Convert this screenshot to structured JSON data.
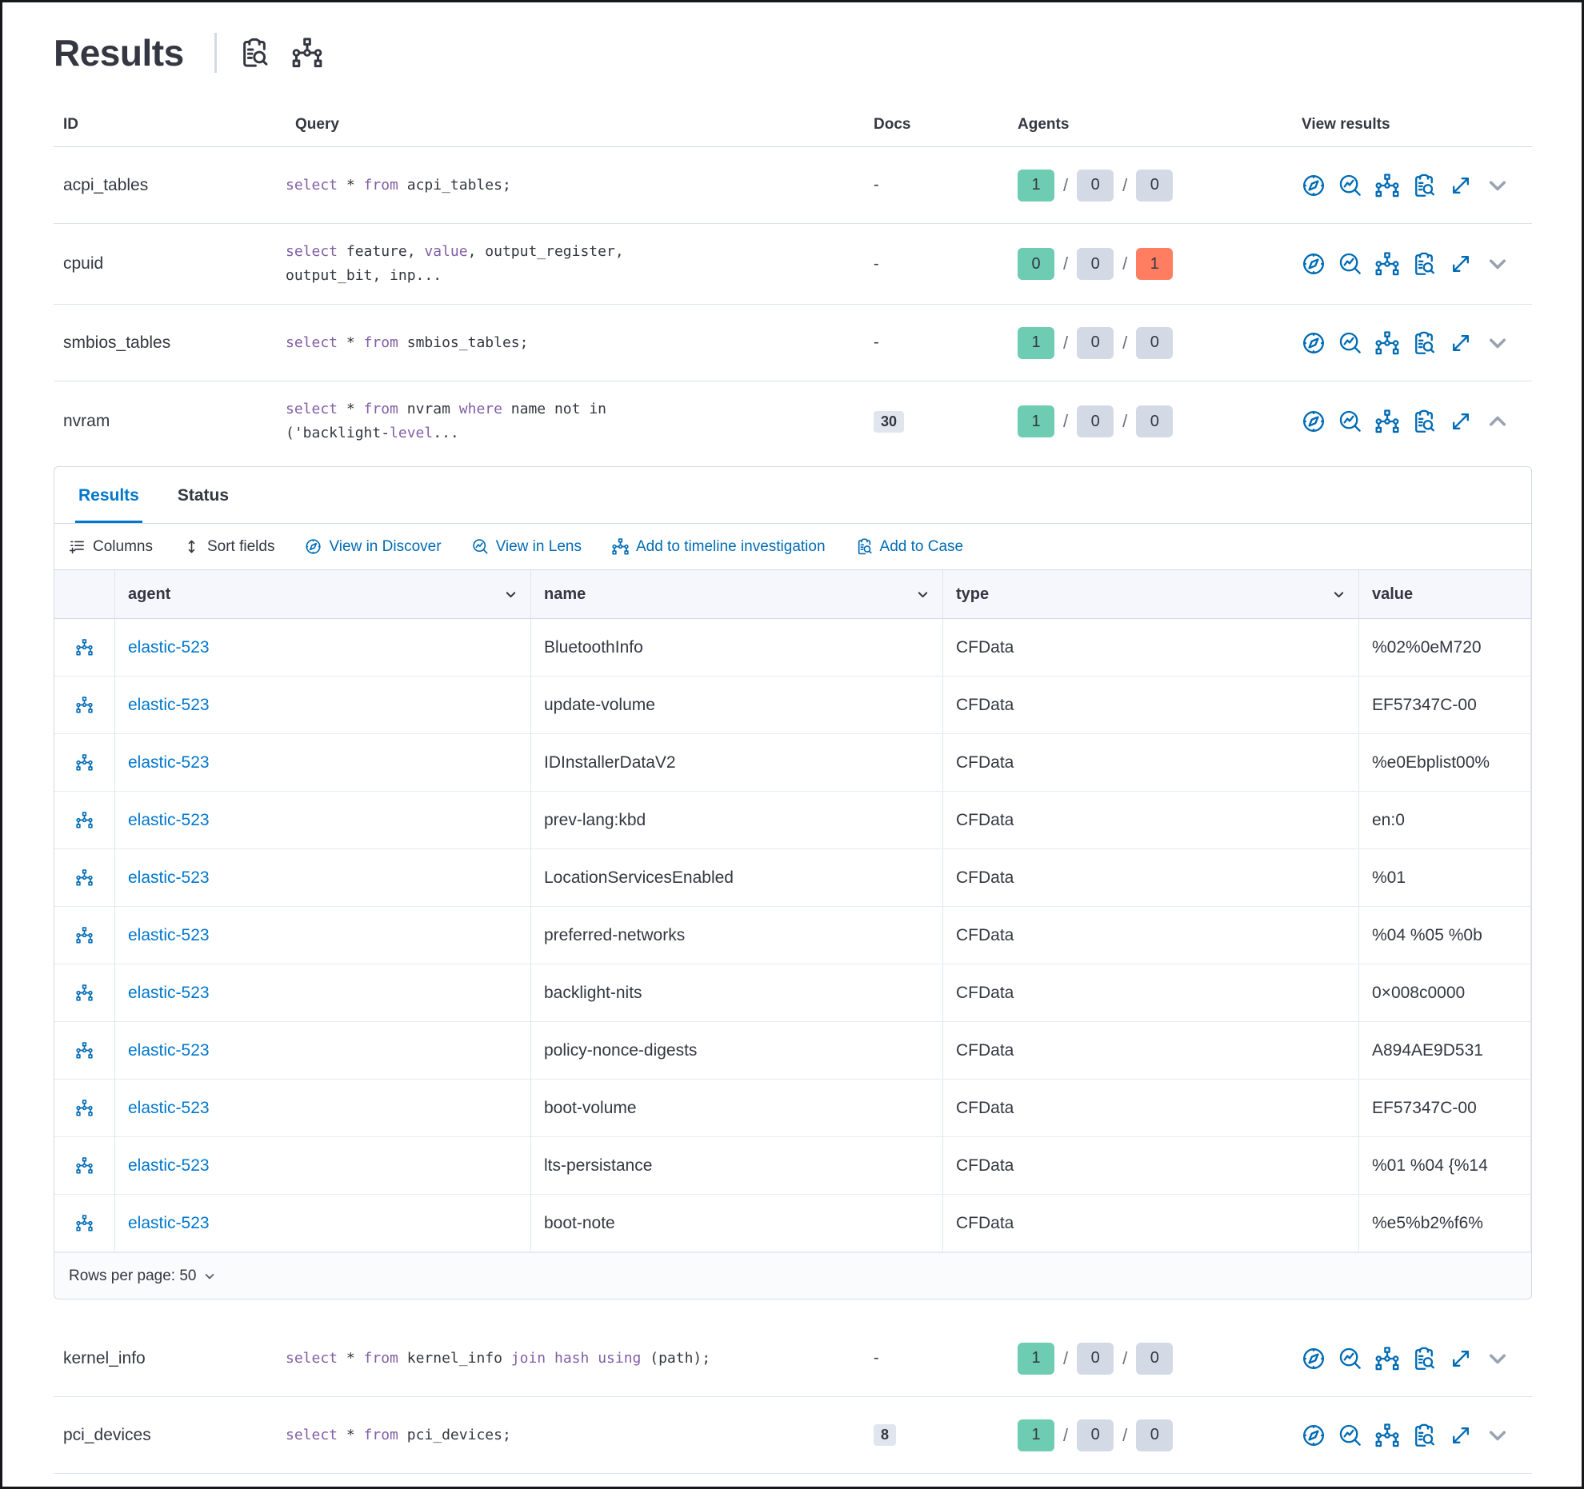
{
  "page": {
    "title": "Results"
  },
  "table": {
    "headers": {
      "id": "ID",
      "query": "Query",
      "docs": "Docs",
      "agents": "Agents",
      "view": "View results"
    }
  },
  "queries": [
    {
      "id": "acpi_tables",
      "query": "select * from acpi_tables;",
      "docs": "-",
      "agents": [
        "1",
        "0",
        "0"
      ]
    },
    {
      "id": "cpuid",
      "query": "select feature, value, output_register,\noutput_bit, inp...",
      "docs": "-",
      "agents": [
        "0",
        "0",
        "1"
      ]
    },
    {
      "id": "smbios_tables",
      "query": "select * from smbios_tables;",
      "docs": "-",
      "agents": [
        "1",
        "0",
        "0"
      ]
    },
    {
      "id": "nvram",
      "query": "select * from nvram where name not in\n('backlight-level...",
      "docs": "30",
      "agents": [
        "1",
        "0",
        "0"
      ]
    },
    {
      "id": "kernel_info",
      "query": "select * from kernel_info join hash using (path);",
      "docs": "-",
      "agents": [
        "1",
        "0",
        "0"
      ]
    },
    {
      "id": "pci_devices",
      "query": "select * from pci_devices;",
      "docs": "8",
      "agents": [
        "1",
        "0",
        "0"
      ]
    }
  ],
  "panel": {
    "tabs": {
      "results": "Results",
      "status": "Status"
    },
    "toolbar": {
      "columns": "Columns",
      "sort": "Sort fields",
      "discover": "View in Discover",
      "lens": "View in Lens",
      "timeline": "Add to timeline investigation",
      "case": "Add to Case"
    },
    "grid": {
      "headers": {
        "agent": "agent",
        "name": "name",
        "type": "type",
        "value": "value"
      },
      "rows": [
        {
          "agent": "elastic-523",
          "name": "BluetoothInfo",
          "type": "CFData",
          "value": "%02%0eM720"
        },
        {
          "agent": "elastic-523",
          "name": "update-volume",
          "type": "CFData",
          "value": "EF57347C-00"
        },
        {
          "agent": "elastic-523",
          "name": "IDInstallerDataV2",
          "type": "CFData",
          "value": "%e0Ebplist00%"
        },
        {
          "agent": "elastic-523",
          "name": "prev-lang:kbd",
          "type": "CFData",
          "value": "en:0"
        },
        {
          "agent": "elastic-523",
          "name": "LocationServicesEnabled",
          "type": "CFData",
          "value": "%01"
        },
        {
          "agent": "elastic-523",
          "name": "preferred-networks",
          "type": "CFData",
          "value": "%04 %05 %0b"
        },
        {
          "agent": "elastic-523",
          "name": "backlight-nits",
          "type": "CFData",
          "value": "0×008c0000"
        },
        {
          "agent": "elastic-523",
          "name": "policy-nonce-digests",
          "type": "CFData",
          "value": "A894AE9D531"
        },
        {
          "agent": "elastic-523",
          "name": "boot-volume",
          "type": "CFData",
          "value": "EF57347C-00"
        },
        {
          "agent": "elastic-523",
          "name": "lts-persistance",
          "type": "CFData",
          "value": "%01 %04 {%14"
        },
        {
          "agent": "elastic-523",
          "name": "boot-note",
          "type": "CFData",
          "value": "%e5%b2%f6%"
        }
      ]
    },
    "pagination": {
      "rows_per_page": "Rows per page: 50"
    }
  },
  "icons": {
    "clipboard-search-icon": "clipboard with magnifier (inspect / add to case)",
    "tree-diagram-icon": "node tree (timeline investigation)",
    "compass-icon": "Discover compass",
    "lens-icon": "magnifier with chart (Lens)",
    "expand-icon": "diagonal expand arrows",
    "chevron-icon": "expand/collapse chevron",
    "columns-icon": "list with plus",
    "sort-icon": "vertical double arrow"
  },
  "colors": {
    "text": "#343741",
    "link": "#0077CC",
    "action_icon": "#006BB4",
    "badge_success": "#6DCCB1",
    "badge_neutral": "#D3DAE6",
    "badge_danger": "#FF7E62",
    "sql_keyword": "#825FA5",
    "border": "#D3DAE6"
  }
}
